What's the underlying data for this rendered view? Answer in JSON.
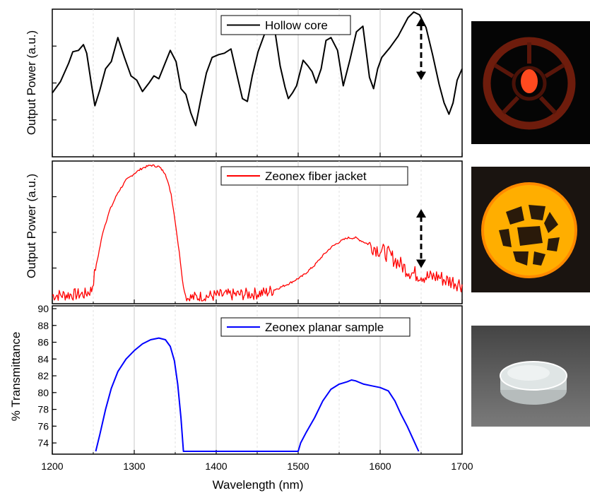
{
  "chart_data": [
    {
      "type": "line",
      "ylabel": "Output Power (a.u.)",
      "xlim": [
        1200,
        1700
      ],
      "ylim": [
        0,
        1
      ],
      "grid": "vertical",
      "legend_position": "top-center",
      "series": [
        {
          "name": "Hollow core",
          "color": "#000000",
          "points": [
            [
              1200,
              0.43
            ],
            [
              1210,
              0.51
            ],
            [
              1220,
              0.64
            ],
            [
              1225,
              0.72
            ],
            [
              1232,
              0.73
            ],
            [
              1238,
              0.77
            ],
            [
              1242,
              0.71
            ],
            [
              1248,
              0.48
            ],
            [
              1252,
              0.34
            ],
            [
              1258,
              0.45
            ],
            [
              1265,
              0.6
            ],
            [
              1272,
              0.65
            ],
            [
              1280,
              0.82
            ],
            [
              1288,
              0.68
            ],
            [
              1296,
              0.55
            ],
            [
              1303,
              0.52
            ],
            [
              1310,
              0.44
            ],
            [
              1318,
              0.5
            ],
            [
              1324,
              0.55
            ],
            [
              1330,
              0.53
            ],
            [
              1337,
              0.63
            ],
            [
              1344,
              0.73
            ],
            [
              1351,
              0.65
            ],
            [
              1357,
              0.46
            ],
            [
              1363,
              0.42
            ],
            [
              1369,
              0.29
            ],
            [
              1375,
              0.2
            ],
            [
              1381,
              0.38
            ],
            [
              1388,
              0.57
            ],
            [
              1395,
              0.68
            ],
            [
              1403,
              0.7
            ],
            [
              1410,
              0.71
            ],
            [
              1418,
              0.74
            ],
            [
              1424,
              0.59
            ],
            [
              1432,
              0.39
            ],
            [
              1438,
              0.37
            ],
            [
              1444,
              0.55
            ],
            [
              1451,
              0.72
            ],
            [
              1458,
              0.83
            ],
            [
              1465,
              0.94
            ],
            [
              1471,
              0.89
            ],
            [
              1478,
              0.62
            ],
            [
              1484,
              0.47
            ],
            [
              1488,
              0.39
            ],
            [
              1493,
              0.43
            ],
            [
              1498,
              0.48
            ],
            [
              1506,
              0.66
            ],
            [
              1512,
              0.62
            ],
            [
              1517,
              0.58
            ],
            [
              1522,
              0.5
            ],
            [
              1528,
              0.6
            ],
            [
              1534,
              0.8
            ],
            [
              1540,
              0.82
            ],
            [
              1548,
              0.73
            ],
            [
              1555,
              0.48
            ],
            [
              1563,
              0.66
            ],
            [
              1571,
              0.86
            ],
            [
              1579,
              0.9
            ],
            [
              1587,
              0.54
            ],
            [
              1592,
              0.46
            ],
            [
              1597,
              0.6
            ],
            [
              1602,
              0.68
            ],
            [
              1612,
              0.75
            ],
            [
              1622,
              0.83
            ],
            [
              1634,
              0.96
            ],
            [
              1641,
              1.0
            ],
            [
              1648,
              0.98
            ],
            [
              1656,
              0.89
            ],
            [
              1664,
              0.7
            ],
            [
              1672,
              0.49
            ],
            [
              1678,
              0.36
            ],
            [
              1684,
              0.28
            ],
            [
              1689,
              0.36
            ],
            [
              1694,
              0.52
            ],
            [
              1700,
              0.6
            ]
          ]
        }
      ],
      "annotations": [
        {
          "type": "double-arrow",
          "x": 1650,
          "y_from": 0.52,
          "y_to": 0.96
        }
      ]
    },
    {
      "type": "line",
      "ylabel": "Output Power (a.u.)",
      "xlim": [
        1200,
        1700
      ],
      "ylim": [
        0,
        1
      ],
      "grid": "vertical",
      "legend_position": "top-center",
      "series": [
        {
          "name": "Zeonex fiber jacket",
          "color": "#ff0000",
          "points": [
            [
              1200,
              0.04
            ],
            [
              1240,
              0.05
            ],
            [
              1248,
              0.08
            ],
            [
              1255,
              0.3
            ],
            [
              1262,
              0.51
            ],
            [
              1270,
              0.66
            ],
            [
              1280,
              0.79
            ],
            [
              1290,
              0.88
            ],
            [
              1300,
              0.93
            ],
            [
              1310,
              0.97
            ],
            [
              1320,
              0.99
            ],
            [
              1330,
              0.98
            ],
            [
              1338,
              0.93
            ],
            [
              1345,
              0.78
            ],
            [
              1350,
              0.58
            ],
            [
              1355,
              0.35
            ],
            [
              1360,
              0.1
            ],
            [
              1364,
              0.02
            ],
            [
              1400,
              0.04
            ],
            [
              1440,
              0.05
            ],
            [
              1460,
              0.06
            ],
            [
              1475,
              0.09
            ],
            [
              1490,
              0.13
            ],
            [
              1505,
              0.18
            ],
            [
              1520,
              0.26
            ],
            [
              1530,
              0.33
            ],
            [
              1540,
              0.39
            ],
            [
              1550,
              0.43
            ],
            [
              1560,
              0.46
            ],
            [
              1570,
              0.46
            ],
            [
              1580,
              0.43
            ],
            [
              1590,
              0.4
            ],
            [
              1600,
              0.37
            ],
            [
              1610,
              0.34
            ],
            [
              1620,
              0.29
            ],
            [
              1630,
              0.24
            ],
            [
              1640,
              0.2
            ],
            [
              1650,
              0.19
            ],
            [
              1660,
              0.17
            ],
            [
              1670,
              0.18
            ],
            [
              1680,
              0.15
            ],
            [
              1690,
              0.14
            ],
            [
              1700,
              0.12
            ]
          ]
        }
      ],
      "annotations": [
        {
          "type": "double-arrow",
          "x": 1650,
          "y_from": 0.24,
          "y_to": 0.67
        }
      ]
    },
    {
      "type": "line",
      "ylabel": "% Transmittance",
      "xlabel": "Wavelength (nm)",
      "xlim": [
        1200,
        1700
      ],
      "ylim": [
        73,
        90
      ],
      "xticks": [
        "1200",
        "1300",
        "1400",
        "1500",
        "1600",
        "1700"
      ],
      "yticks": [
        "74",
        "76",
        "78",
        "80",
        "82",
        "84",
        "86",
        "88",
        "90"
      ],
      "grid": "vertical",
      "legend_position": "top-center",
      "series": [
        {
          "name": "Zeonex planar sample",
          "color": "#0000ff",
          "points": [
            [
              1253,
              73
            ],
            [
              1258,
              75
            ],
            [
              1265,
              78
            ],
            [
              1272,
              80.5
            ],
            [
              1280,
              82.5
            ],
            [
              1290,
              84
            ],
            [
              1300,
              85
            ],
            [
              1310,
              85.8
            ],
            [
              1320,
              86.3
            ],
            [
              1330,
              86.5
            ],
            [
              1338,
              86.3
            ],
            [
              1344,
              85.5
            ],
            [
              1349,
              83.8
            ],
            [
              1353,
              81
            ],
            [
              1357,
              77
            ],
            [
              1360,
              73
            ],
            [
              1500,
              73
            ],
            [
              1503,
              74
            ],
            [
              1510,
              75.3
            ],
            [
              1520,
              77
            ],
            [
              1530,
              79
            ],
            [
              1540,
              80.4
            ],
            [
              1550,
              81
            ],
            [
              1560,
              81.3
            ],
            [
              1565,
              81.5
            ],
            [
              1570,
              81.4
            ],
            [
              1580,
              81
            ],
            [
              1590,
              80.8
            ],
            [
              1600,
              80.6
            ],
            [
              1610,
              80.2
            ],
            [
              1618,
              79
            ],
            [
              1625,
              77.5
            ],
            [
              1633,
              76
            ],
            [
              1640,
              74.5
            ],
            [
              1647,
              73
            ]
          ]
        }
      ]
    }
  ],
  "photos": [
    {
      "name": "hollow-core-mode-photo",
      "background": "#050505",
      "ring_color": "#7a1f0d",
      "core_color": "#ff4a1f"
    },
    {
      "name": "fiber-jacket-mode-photo",
      "background": "#1a1410",
      "ring_color": "#ffb000",
      "hole_color": "#2a1a0a"
    },
    {
      "name": "planar-sample-photo",
      "background": "#5a5a5a",
      "disc_color": "#c8cfcf"
    }
  ]
}
